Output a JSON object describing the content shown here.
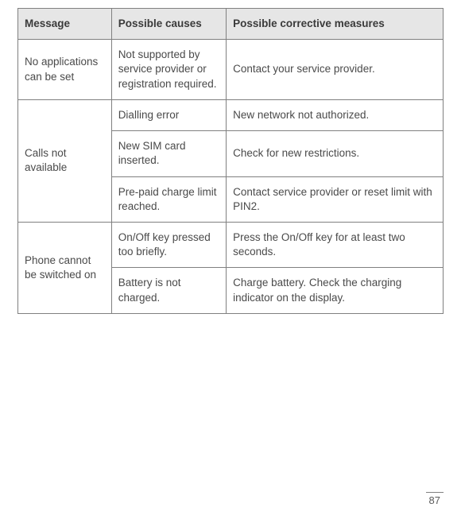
{
  "table": {
    "headers": {
      "message": "Message",
      "causes": "Possible causes",
      "measures": "Possible corrective measures"
    },
    "rows": {
      "r1": {
        "message": "No applications can be set",
        "cause": "Not supported by service provider or registration required.",
        "measure": "Contact your service provider."
      },
      "r2": {
        "message": "Calls not available",
        "cause_a": "Dialling error",
        "measure_a": "New network not authorized.",
        "cause_b": "New SIM card inserted.",
        "measure_b": "Check for new restrictions.",
        "cause_c": "Pre-paid charge limit reached.",
        "measure_c": "Contact service provider or reset limit with PIN2."
      },
      "r3": {
        "message": "Phone cannot be switched on",
        "cause_a": "On/Off key pressed too briefly.",
        "measure_a": "Press the On/Off key for at least two seconds.",
        "cause_b": "Battery is not charged.",
        "measure_b": "Charge battery. Check the charging indicator on the display."
      }
    }
  },
  "page_number": "87",
  "colors": {
    "header_bg": "#e6e6e6",
    "border": "#808080",
    "text": "#4a4a4a",
    "header_text": "#3a3a3a",
    "background": "#ffffff"
  },
  "typography": {
    "font_family": "Arial, Helvetica, sans-serif",
    "cell_fontsize": 13.5,
    "page_num_fontsize": 13
  }
}
